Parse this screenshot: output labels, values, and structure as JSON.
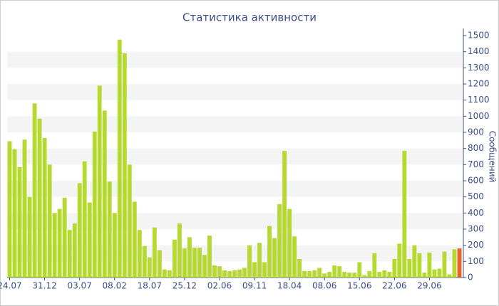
{
  "chart_data": {
    "type": "bar",
    "title": "Статистика активности",
    "y_label": "Сообщений",
    "categories": [
      "24.07",
      null,
      null,
      null,
      null,
      null,
      null,
      "31.12",
      null,
      null,
      null,
      null,
      null,
      null,
      "03.07",
      null,
      null,
      null,
      null,
      null,
      null,
      "08.02",
      null,
      null,
      null,
      null,
      null,
      null,
      "18.07",
      null,
      null,
      null,
      null,
      null,
      null,
      "25.12",
      null,
      null,
      null,
      null,
      null,
      null,
      "02.06",
      null,
      null,
      null,
      null,
      null,
      null,
      "09.11",
      null,
      null,
      null,
      null,
      null,
      null,
      "18.04",
      null,
      null,
      null,
      null,
      null,
      null,
      "08.06",
      null,
      null,
      null,
      null,
      null,
      null,
      "15.06",
      null,
      null,
      null,
      null,
      null,
      null,
      "22.06",
      null,
      null,
      null,
      null,
      null,
      null,
      "29.06",
      null,
      null,
      null,
      null,
      null,
      null
    ],
    "values": [
      845,
      795,
      685,
      855,
      500,
      1080,
      985,
      865,
      700,
      400,
      425,
      495,
      295,
      335,
      585,
      720,
      465,
      905,
      1190,
      1035,
      595,
      400,
      1475,
      1390,
      700,
      470,
      295,
      195,
      125,
      310,
      170,
      50,
      45,
      235,
      335,
      180,
      250,
      185,
      185,
      140,
      260,
      75,
      70,
      45,
      40,
      45,
      50,
      60,
      200,
      95,
      215,
      95,
      320,
      245,
      455,
      785,
      425,
      255,
      115,
      40,
      40,
      45,
      60,
      25,
      35,
      75,
      70,
      35,
      30,
      30,
      95,
      15,
      40,
      150,
      35,
      45,
      35,
      115,
      210,
      785,
      115,
      200,
      150,
      30,
      155,
      50,
      55,
      160,
      20,
      175,
      180
    ],
    "color": "#b5d930",
    "highlight": {
      "index": 90,
      "color": "#e8622c"
    },
    "ylim": [
      0,
      1500
    ],
    "yticks": [
      0,
      100,
      200,
      300,
      400,
      500,
      600,
      700,
      800,
      900,
      1000,
      1100,
      1200,
      1300,
      1400,
      1500
    ],
    "grid": true,
    "y_axis_side": "right"
  }
}
